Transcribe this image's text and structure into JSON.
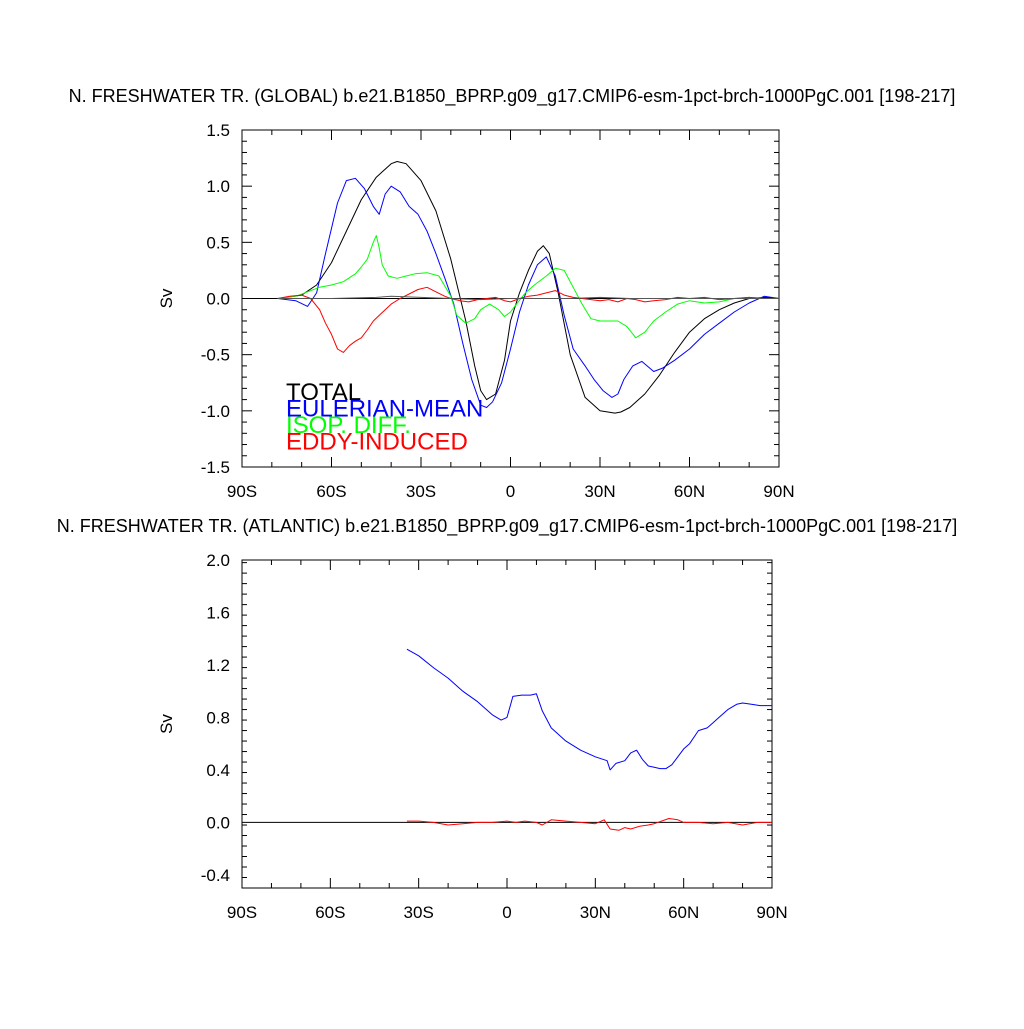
{
  "chart_data": [
    {
      "type": "line",
      "title": "N. FRESHWATER TR. (GLOBAL) b.e21.B1850_BPRP.g09_g17.CMIP6-esm-1pct-brch-1000PgC.001 [198-217]",
      "xlabel": "",
      "ylabel": "Sv",
      "xlim": [
        -90,
        90
      ],
      "ylim": [
        -1.5,
        1.5
      ],
      "x_ticks": [
        -90,
        -60,
        -30,
        0,
        30,
        60,
        90
      ],
      "x_tick_labels": [
        "90S",
        "60S",
        "30S",
        "0",
        "30N",
        "60N",
        "90N"
      ],
      "y_ticks": [
        -1.5,
        -1.0,
        -0.5,
        0.0,
        0.5,
        1.0,
        1.5
      ],
      "y_tick_labels": [
        "-1.5",
        "-1.0",
        "-0.5",
        "0.0",
        "0.5",
        "1.0",
        "1.5"
      ],
      "zero_line": true,
      "grid": false,
      "legend": "bottom-left, inside",
      "series": [
        {
          "name": "TOTAL",
          "color": "#000000",
          "x": [
            -78,
            -70,
            -65,
            -60,
            -55,
            -50,
            -45,
            -40,
            -38,
            -35,
            -30,
            -25,
            -20,
            -15,
            -12,
            -10,
            -8,
            -5,
            -2,
            0,
            3,
            6,
            9,
            11,
            13,
            16,
            20,
            25,
            30,
            35,
            37,
            40,
            45,
            50,
            55,
            60,
            65,
            70,
            75,
            80,
            85,
            90
          ],
          "y": [
            0,
            0.03,
            0.12,
            0.32,
            0.6,
            0.88,
            1.08,
            1.2,
            1.22,
            1.2,
            1.05,
            0.78,
            0.35,
            -0.2,
            -0.6,
            -0.82,
            -0.9,
            -0.85,
            -0.55,
            -0.2,
            0.05,
            0.25,
            0.42,
            0.47,
            0.4,
            0.05,
            -0.5,
            -0.88,
            -1.0,
            -1.02,
            -1.01,
            -0.97,
            -0.85,
            -0.68,
            -0.48,
            -0.3,
            -0.18,
            -0.1,
            -0.04,
            0,
            0.01,
            0
          ]
        },
        {
          "name": "EULERIAN-MEAN",
          "color": "#0000ff",
          "x": [
            -78,
            -72,
            -68,
            -65,
            -62,
            -58,
            -55,
            -52,
            -49,
            -46,
            -44,
            -42,
            -40,
            -37,
            -34,
            -31,
            -28,
            -25,
            -22,
            -19,
            -16,
            -13,
            -10,
            -8,
            -6,
            -3,
            0,
            3,
            6,
            9,
            12,
            15,
            18,
            21,
            25,
            28,
            31,
            34,
            36,
            38,
            41,
            44,
            48,
            51,
            55,
            60,
            65,
            70,
            75,
            80,
            85,
            90
          ],
          "y": [
            0,
            -0.02,
            -0.07,
            0.05,
            0.4,
            0.85,
            1.05,
            1.07,
            0.98,
            0.82,
            0.75,
            0.93,
            1.0,
            0.95,
            0.82,
            0.75,
            0.6,
            0.4,
            0.18,
            -0.05,
            -0.4,
            -0.72,
            -0.95,
            -0.97,
            -0.92,
            -0.75,
            -0.45,
            -0.12,
            0.12,
            0.3,
            0.37,
            0.2,
            -0.15,
            -0.45,
            -0.6,
            -0.72,
            -0.82,
            -0.88,
            -0.85,
            -0.72,
            -0.6,
            -0.56,
            -0.65,
            -0.62,
            -0.55,
            -0.45,
            -0.32,
            -0.22,
            -0.12,
            -0.04,
            0.02,
            0
          ]
        },
        {
          "name": "ISOP. DIFF.",
          "color": "#00ff00",
          "x": [
            -78,
            -72,
            -68,
            -64,
            -60,
            -56,
            -52,
            -50,
            -48,
            -46,
            -45,
            -44,
            -43,
            -41,
            -38,
            -35,
            -32,
            -28,
            -24,
            -20,
            -18,
            -15,
            -12,
            -10,
            -7,
            -4,
            -2,
            0,
            2,
            5,
            8,
            12,
            15,
            18,
            21,
            24,
            27,
            30,
            33,
            36,
            39,
            42,
            45,
            48,
            52,
            56,
            60,
            65,
            70,
            75,
            80,
            85,
            90
          ],
          "y": [
            0,
            0.02,
            0.06,
            0.1,
            0.12,
            0.15,
            0.22,
            0.28,
            0.35,
            0.5,
            0.56,
            0.45,
            0.3,
            0.2,
            0.18,
            0.2,
            0.22,
            0.23,
            0.2,
            0.02,
            -0.15,
            -0.22,
            -0.18,
            -0.1,
            -0.05,
            -0.1,
            -0.16,
            -0.12,
            -0.05,
            0.05,
            0.12,
            0.2,
            0.27,
            0.25,
            0.1,
            -0.05,
            -0.18,
            -0.2,
            -0.2,
            -0.2,
            -0.25,
            -0.35,
            -0.3,
            -0.2,
            -0.12,
            -0.05,
            -0.02,
            -0.04,
            -0.03,
            0,
            0.01,
            0,
            0
          ]
        },
        {
          "name": "EDDY-INDUCED",
          "color": "#ff0000",
          "x": [
            -78,
            -74,
            -70,
            -67,
            -64,
            -62,
            -60,
            -58,
            -56,
            -54,
            -52,
            -50,
            -48,
            -46,
            -44,
            -42,
            -40,
            -37,
            -34,
            -31,
            -28,
            -25,
            -22,
            -20,
            -17,
            -14,
            -11,
            -8,
            -5,
            -2,
            0,
            3,
            6,
            9,
            12,
            15,
            18,
            21,
            24,
            27,
            30,
            33,
            36,
            39,
            42,
            45,
            48,
            52,
            56,
            60,
            65,
            70,
            75,
            80,
            85,
            90
          ],
          "y": [
            0,
            0.02,
            0.03,
            0,
            -0.1,
            -0.22,
            -0.32,
            -0.45,
            -0.48,
            -0.42,
            -0.38,
            -0.35,
            -0.28,
            -0.2,
            -0.15,
            -0.1,
            -0.05,
            0,
            0.04,
            0.08,
            0.1,
            0.06,
            0.02,
            0.0,
            -0.02,
            -0.03,
            -0.01,
            0,
            0.01,
            -0.02,
            -0.03,
            0.0,
            0.02,
            0.03,
            0.05,
            0.07,
            0.03,
            0.01,
            0,
            -0.01,
            -0.02,
            -0.01,
            -0.03,
            0.0,
            -0.01,
            -0.03,
            -0.02,
            -0.01,
            0.01,
            0,
            0.01,
            -0.01,
            0,
            0.01,
            0,
            0
          ]
        },
        {
          "name": "",
          "color": "#555555",
          "x": [
            -78,
            -60,
            -45,
            -40,
            -30,
            -20,
            -10,
            0,
            10,
            20,
            30,
            40,
            50,
            60,
            70,
            80,
            90
          ],
          "y": [
            0,
            0,
            0.01,
            0.02,
            0.01,
            0,
            -0.01,
            0,
            0,
            0,
            0.01,
            0,
            0,
            0,
            0,
            0,
            0
          ]
        }
      ]
    },
    {
      "type": "line",
      "title": "N. FRESHWATER TR. (ATLANTIC) b.e21.B1850_BPRP.g09_g17.CMIP6-esm-1pct-brch-1000PgC.001 [198-217]",
      "xlabel": "",
      "ylabel": "Sv",
      "xlim": [
        -90,
        90
      ],
      "ylim": [
        -0.5,
        2.0
      ],
      "x_ticks": [
        -90,
        -60,
        -30,
        0,
        30,
        60,
        90
      ],
      "x_tick_labels": [
        "90S",
        "60S",
        "30S",
        "0",
        "30N",
        "60N",
        "90N"
      ],
      "y_ticks": [
        -0.4,
        0.0,
        0.4,
        0.8,
        1.2,
        1.6,
        2.0
      ],
      "y_tick_labels": [
        "-0.4",
        "0.0",
        "0.4",
        "0.8",
        "1.2",
        "1.6",
        "2.0"
      ],
      "zero_line": true,
      "grid": false,
      "series": [
        {
          "name": "",
          "color": "#0000ff",
          "x": [
            -34,
            -30,
            -25,
            -20,
            -15,
            -10,
            -5,
            -2,
            0,
            2,
            5,
            8,
            10,
            12,
            15,
            20,
            25,
            30,
            34,
            35,
            37,
            40,
            42,
            44,
            46,
            48,
            50,
            52,
            54,
            56,
            58,
            60,
            62,
            65,
            68,
            70,
            72,
            75,
            78,
            80,
            83,
            86,
            90
          ],
          "y": [
            1.32,
            1.27,
            1.18,
            1.1,
            1.0,
            0.92,
            0.82,
            0.78,
            0.8,
            0.96,
            0.97,
            0.97,
            0.98,
            0.85,
            0.72,
            0.62,
            0.55,
            0.5,
            0.47,
            0.4,
            0.45,
            0.47,
            0.53,
            0.55,
            0.48,
            0.43,
            0.42,
            0.41,
            0.41,
            0.44,
            0.5,
            0.56,
            0.6,
            0.7,
            0.72,
            0.76,
            0.8,
            0.86,
            0.9,
            0.91,
            0.9,
            0.89,
            0.89
          ]
        },
        {
          "name": "",
          "color": "#ff0000",
          "x": [
            -34,
            -30,
            -25,
            -20,
            -15,
            -10,
            -5,
            0,
            3,
            6,
            10,
            12,
            15,
            20,
            25,
            30,
            33,
            35,
            38,
            40,
            42,
            45,
            48,
            50,
            55,
            58,
            60,
            65,
            70,
            75,
            80,
            85,
            90
          ],
          "y": [
            0.01,
            0.01,
            0.0,
            -0.02,
            -0.01,
            0.0,
            0.0,
            0.01,
            0.0,
            0.01,
            0.0,
            -0.02,
            0.02,
            0.01,
            0.0,
            -0.01,
            0.02,
            -0.05,
            -0.06,
            -0.04,
            -0.05,
            -0.03,
            -0.02,
            -0.01,
            0.03,
            0.02,
            0.0,
            0.0,
            -0.01,
            0.0,
            -0.02,
            0.0,
            0.0
          ]
        }
      ]
    }
  ]
}
